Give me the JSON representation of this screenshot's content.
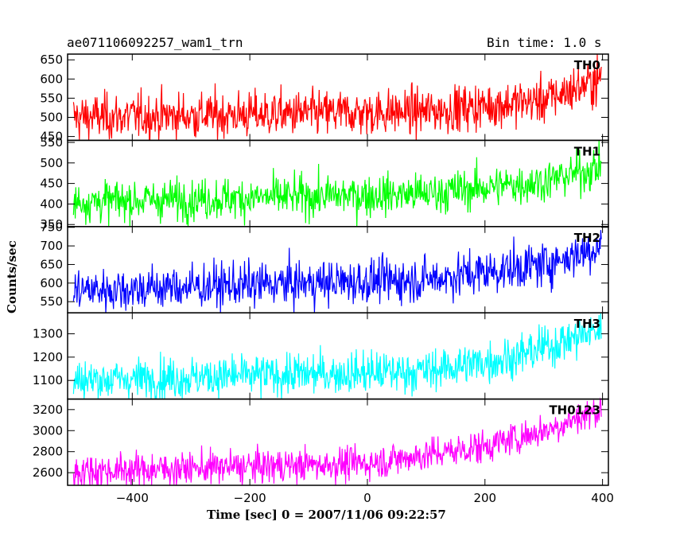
{
  "header": {
    "title": "ae071106092257_wam1_trn",
    "bin_time": "Bin time: 1.0 s"
  },
  "chart_data": {
    "type": "line",
    "xlabel": "Time [sec] 0 = 2007/11/06 09:22:57",
    "ylabel": "Counts/sec",
    "xlim": [
      -510,
      410
    ],
    "x_ticks": [
      -400,
      -200,
      0,
      200,
      400
    ],
    "x_tick_labels": [
      "−400",
      "−200",
      "0",
      "200",
      "400"
    ],
    "panels": [
      {
        "name": "TH0",
        "color": "#ff0000",
        "ylim": [
          440,
          665
        ],
        "yticks": [
          450,
          500,
          550,
          600,
          650
        ],
        "trend": {
          "x": [
            -500,
            100,
            300,
            398
          ],
          "y": [
            500,
            515,
            545,
            600
          ]
        },
        "noise": 30
      },
      {
        "name": "TH1",
        "color": "#00ff00",
        "ylim": [
          345,
          555
        ],
        "yticks": [
          350,
          400,
          450,
          500,
          550
        ],
        "trend": {
          "x": [
            -500,
            100,
            300,
            398
          ],
          "y": [
            405,
            425,
            455,
            490
          ]
        },
        "noise": 25
      },
      {
        "name": "TH2",
        "color": "#0000ff",
        "ylim": [
          520,
          752
        ],
        "yticks": [
          550,
          600,
          650,
          700,
          750
        ],
        "trend": {
          "x": [
            -500,
            100,
            300,
            398
          ],
          "y": [
            580,
            610,
            650,
            700
          ]
        },
        "noise": 30
      },
      {
        "name": "TH3",
        "color": "#00ffff",
        "ylim": [
          1020,
          1390
        ],
        "yticks": [
          1100,
          1200,
          1300
        ],
        "trend": {
          "x": [
            -500,
            100,
            250,
            398
          ],
          "y": [
            1100,
            1140,
            1200,
            1320
          ]
        },
        "noise": 45
      },
      {
        "name": "TH0123",
        "color": "#ff00ff",
        "ylim": [
          2480,
          3300
        ],
        "yticks": [
          2600,
          2800,
          3000,
          3200
        ],
        "trend": {
          "x": [
            -500,
            0,
            200,
            300,
            398
          ],
          "y": [
            2610,
            2690,
            2850,
            3000,
            3200
          ]
        },
        "noise": 80
      }
    ]
  }
}
